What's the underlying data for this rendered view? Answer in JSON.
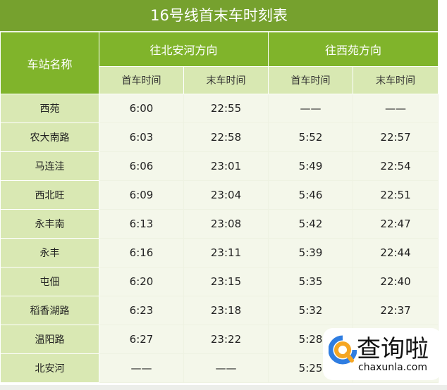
{
  "title": "16号线首末车时刻表",
  "headers": {
    "station": "车站名称",
    "dir1": "往北安河方向",
    "dir2": "往西苑方向",
    "first": "首车时间",
    "last": "末车时间"
  },
  "rows": [
    [
      "西苑",
      "6:00",
      "22:55",
      "——",
      "——"
    ],
    [
      "农大南路",
      "6:03",
      "22:58",
      "5:52",
      "22:57"
    ],
    [
      "马连洼",
      "6:06",
      "23:01",
      "5:49",
      "22:54"
    ],
    [
      "西北旺",
      "6:09",
      "23:04",
      "5:46",
      "22:51"
    ],
    [
      "永丰南",
      "6:13",
      "23:08",
      "5:42",
      "22:47"
    ],
    [
      "永丰",
      "6:16",
      "23:11",
      "5:39",
      "22:44"
    ],
    [
      "屯佃",
      "6:20",
      "23:15",
      "5:35",
      "22:40"
    ],
    [
      "稻香湖路",
      "6:23",
      "23:18",
      "5:32",
      "22:37"
    ],
    [
      "温阳路",
      "6:27",
      "23:22",
      "5:28",
      ""
    ],
    [
      "北安河",
      "——",
      "——",
      "5:25",
      ""
    ]
  ],
  "watermark": {
    "text": "查询啦",
    "domain": "chaxunla.com"
  }
}
